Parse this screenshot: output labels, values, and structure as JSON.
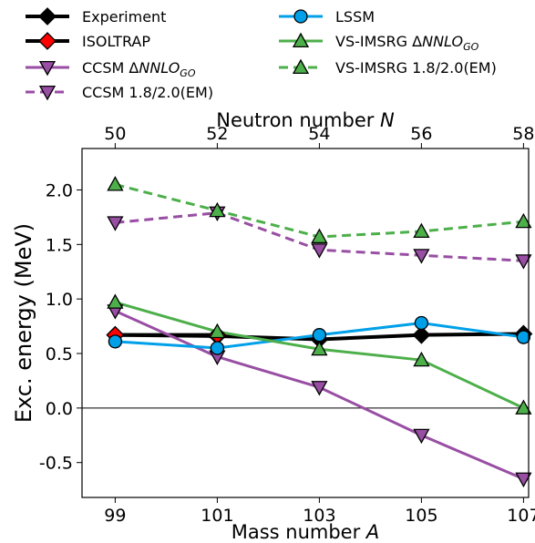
{
  "chart_data": {
    "type": "line",
    "title": "",
    "xlabel": "Mass number A",
    "xlabel_parts": {
      "text": "Mass number ",
      "var": "A"
    },
    "top_xlabel": "Neutron number N",
    "top_xlabel_parts": {
      "text": "Neutron number ",
      "var": "N"
    },
    "ylabel": "Exc. energy (MeV)",
    "x": [
      99,
      101,
      103,
      105,
      107
    ],
    "xticklabels": [
      "99",
      "101",
      "103",
      "105",
      "107"
    ],
    "top_xticklabels": [
      "50",
      "52",
      "54",
      "56",
      "58"
    ],
    "xlim": [
      98.35,
      107.1
    ],
    "ylim": [
      -0.82,
      2.38
    ],
    "yticks": [
      -0.5,
      0.0,
      0.5,
      1.0,
      1.5,
      2.0
    ],
    "yticklabels": [
      "-0.5",
      "0.0",
      "0.5",
      "1.0",
      "1.5",
      "2.0"
    ],
    "zero_line": true,
    "grid": false,
    "legend_position": "top, above plot, two columns",
    "series": [
      {
        "name": "Experiment",
        "legend_prefix": "Experiment",
        "legend_italic": "",
        "legend_sub": "",
        "color": "#000000",
        "face": "#000000",
        "marker": "diamond",
        "dash": false,
        "width": 4,
        "values": [
          0.67,
          0.66,
          0.63,
          0.67,
          0.68
        ]
      },
      {
        "name": "ISOLTRAP",
        "legend_prefix": "ISOLTRAP",
        "legend_italic": "",
        "legend_sub": "",
        "color": "#000000",
        "face": "#ff0000",
        "marker": "diamond",
        "dash": false,
        "width": 4,
        "values": [
          0.67,
          0.67,
          null,
          null,
          null
        ]
      },
      {
        "name": "CCSM ΔNNLO_GO",
        "legend_prefix": "CCSM Δ",
        "legend_italic": "NNLO",
        "legend_sub": "GO",
        "color": "#984ea3",
        "face": "#984ea3",
        "marker": "triangle-down",
        "dash": false,
        "width": 3,
        "values": [
          0.89,
          0.47,
          0.19,
          -0.25,
          -0.65
        ]
      },
      {
        "name": "CCSM 1.8/2.0(EM)",
        "legend_prefix": "CCSM 1.8/2.0(EM)",
        "legend_italic": "",
        "legend_sub": "",
        "color": "#984ea3",
        "face": "#984ea3",
        "marker": "triangle-down",
        "dash": true,
        "width": 3,
        "values": [
          1.7,
          1.79,
          1.45,
          1.4,
          1.35
        ]
      },
      {
        "name": "LSSM",
        "legend_prefix": "LSSM",
        "legend_italic": "",
        "legend_sub": "",
        "color": "#00a0e9",
        "face": "#00a0e9",
        "marker": "circle",
        "dash": false,
        "width": 3,
        "values": [
          0.61,
          0.55,
          0.67,
          0.78,
          0.65
        ]
      },
      {
        "name": "VS-IMSRG ΔNNLO_GO",
        "legend_prefix": "VS-IMSRG Δ",
        "legend_italic": "NNLO",
        "legend_sub": "GO",
        "color": "#4daf4a",
        "face": "#4daf4a",
        "marker": "triangle-up",
        "dash": false,
        "width": 3,
        "values": [
          0.97,
          0.7,
          0.54,
          0.44,
          0.0
        ]
      },
      {
        "name": "VS-IMSRG 1.8/2.0(EM)",
        "legend_prefix": "VS-IMSRG 1.8/2.0(EM)",
        "legend_italic": "",
        "legend_sub": "",
        "color": "#4daf4a",
        "face": "#4daf4a",
        "marker": "triangle-up",
        "dash": true,
        "width": 3,
        "values": [
          2.05,
          1.81,
          1.57,
          1.62,
          1.71
        ]
      }
    ]
  }
}
